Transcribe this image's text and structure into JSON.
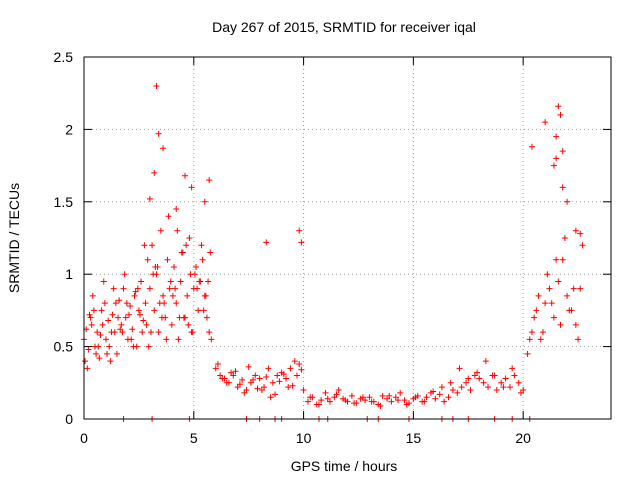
{
  "chart_data": {
    "type": "scatter",
    "title": "Day 267 of 2015, SRMTID for receiver iqal",
    "xlabel": "GPS time / hours",
    "ylabel": "SRMTID / TECUs",
    "xlim": [
      0,
      24
    ],
    "ylim": [
      0,
      2.5
    ],
    "grid": true,
    "x_ticks": [
      0,
      5,
      10,
      15,
      20
    ],
    "x_tick_labels": [
      "0",
      "5",
      "10",
      "15",
      "20"
    ],
    "y_ticks": [
      0,
      0.5,
      1,
      1.5,
      2,
      2.5
    ],
    "y_tick_labels": [
      "0",
      "0.5",
      "1",
      "1.5",
      "2",
      "2.5"
    ],
    "marker": "+",
    "color": "#ff0000",
    "series": [
      {
        "name": "SRMTID",
        "x": [
          0.0,
          0.1,
          0.2,
          0.3,
          0.4,
          0.5,
          0.6,
          0.7,
          0.8,
          0.9,
          1.0,
          1.1,
          1.2,
          1.3,
          1.4,
          1.5,
          1.6,
          1.7,
          1.8,
          1.9,
          2.0,
          2.1,
          2.2,
          2.3,
          2.4,
          2.5,
          2.6,
          2.7,
          2.8,
          2.9,
          3.0,
          3.1,
          3.2,
          3.3,
          3.4,
          3.5,
          3.6,
          3.7,
          3.8,
          3.9,
          4.0,
          4.1,
          4.2,
          4.3,
          4.4,
          4.5,
          4.6,
          4.7,
          4.8,
          4.9,
          5.0,
          5.1,
          5.2,
          5.3,
          5.4,
          5.5,
          5.6,
          5.7,
          5.8,
          6.0,
          6.2,
          6.4,
          6.6,
          6.8,
          7.0,
          7.2,
          7.4,
          7.6,
          7.8,
          8.0,
          8.2,
          8.4,
          8.6,
          8.8,
          9.0,
          9.2,
          9.4,
          9.6,
          9.8,
          10.0,
          10.2,
          10.4,
          10.6,
          10.8,
          11.0,
          11.2,
          11.4,
          11.6,
          11.8,
          12.0,
          12.2,
          12.4,
          12.6,
          12.8,
          13.0,
          13.2,
          13.4,
          13.6,
          13.8,
          14.0,
          14.2,
          14.4,
          14.6,
          14.8,
          15.0,
          15.2,
          15.4,
          15.6,
          15.8,
          16.0,
          16.2,
          16.4,
          16.6,
          16.8,
          17.0,
          17.2,
          17.4,
          17.6,
          17.8,
          18.0,
          18.2,
          18.4,
          18.6,
          18.8,
          19.0,
          19.2,
          19.4,
          19.6,
          19.8,
          20.0,
          20.2,
          20.4,
          20.6,
          20.8,
          21.0,
          21.2,
          21.4,
          21.6,
          21.8,
          22.0,
          22.2,
          22.4,
          22.6,
          0.05,
          0.35,
          0.65,
          0.95,
          1.25,
          1.55,
          1.85,
          2.15,
          2.45,
          2.75,
          3.05,
          3.35,
          3.65,
          3.95,
          4.25,
          4.55,
          4.85,
          5.15,
          5.45,
          5.75,
          0.15,
          0.45,
          0.75,
          1.05,
          1.35,
          1.65,
          1.95,
          2.25,
          2.55,
          2.85,
          3.15,
          3.45,
          3.75,
          4.05,
          4.35,
          4.65,
          4.95,
          5.25,
          5.55,
          0.25,
          0.55,
          0.85,
          1.15,
          1.45,
          1.75,
          2.05,
          2.35,
          2.65,
          2.95,
          3.25,
          3.55,
          3.85,
          4.15,
          4.45,
          4.75,
          5.05,
          5.35,
          5.65,
          6.1,
          6.5,
          6.9,
          7.3,
          7.7,
          8.1,
          8.5,
          8.9,
          9.3,
          9.7,
          6.3,
          6.7,
          7.1,
          7.5,
          7.9,
          8.3,
          8.7,
          9.1,
          9.5,
          9.9,
          10.3,
          10.7,
          11.1,
          11.5,
          11.9,
          12.3,
          12.7,
          13.1,
          13.5,
          13.9,
          14.3,
          14.7,
          15.1,
          15.5,
          15.9,
          16.3,
          16.7,
          17.1,
          17.5,
          17.9,
          18.3,
          18.7,
          19.1,
          19.5,
          19.9,
          20.3,
          20.7,
          21.1,
          21.5,
          21.9,
          22.3,
          22.7,
          20.5,
          20.9,
          21.3,
          21.7,
          22.1,
          22.5,
          21.0,
          21.5,
          21.8,
          22.0,
          22.4,
          3.3,
          3.4,
          3.2,
          3.6,
          3.0,
          5.7,
          4.2,
          4.6,
          4.9,
          5.5,
          8.3,
          9.8,
          9.9,
          21.6,
          21.7,
          21.5,
          21.8,
          21.4,
          22.6,
          20.4,
          1.8,
          3.1,
          4.8,
          7.4,
          8.0,
          8.7,
          9.0,
          10.7,
          11.1,
          12.9,
          13.4,
          14.8,
          16.3,
          16.8,
          17.5,
          18.7,
          19.5,
          20.3
        ],
        "y": [
          0.55,
          0.62,
          0.48,
          0.7,
          0.85,
          0.5,
          0.6,
          0.42,
          0.75,
          0.95,
          0.55,
          0.68,
          0.4,
          0.72,
          0.6,
          0.45,
          0.82,
          0.65,
          0.9,
          0.7,
          0.55,
          0.78,
          0.62,
          0.85,
          0.5,
          0.75,
          0.95,
          0.68,
          0.8,
          1.1,
          0.9,
          1.2,
          0.75,
          1.0,
          0.6,
          1.3,
          0.85,
          0.7,
          1.1,
          0.9,
          0.65,
          1.05,
          0.8,
          0.55,
          0.95,
          1.15,
          0.7,
          0.85,
          1.25,
          0.6,
          0.9,
          1.05,
          0.75,
          0.95,
          1.1,
          0.85,
          0.7,
          0.6,
          0.55,
          0.35,
          0.3,
          0.28,
          0.25,
          0.3,
          0.22,
          0.27,
          0.2,
          0.25,
          0.3,
          0.28,
          0.22,
          0.35,
          0.25,
          0.3,
          0.32,
          0.28,
          0.35,
          0.4,
          0.38,
          0.2,
          0.12,
          0.15,
          0.1,
          0.13,
          0.18,
          0.12,
          0.15,
          0.2,
          0.14,
          0.12,
          0.16,
          0.11,
          0.14,
          0.13,
          0.15,
          0.12,
          0.1,
          0.16,
          0.14,
          0.12,
          0.15,
          0.18,
          0.13,
          0.11,
          0.14,
          0.16,
          0.12,
          0.15,
          0.18,
          0.14,
          0.17,
          0.12,
          0.15,
          0.2,
          0.18,
          0.22,
          0.25,
          0.2,
          0.3,
          0.28,
          0.25,
          0.22,
          0.3,
          0.2,
          0.25,
          0.28,
          0.22,
          0.3,
          0.25,
          0.2,
          0.45,
          0.6,
          0.75,
          0.55,
          0.8,
          0.9,
          0.7,
          0.95,
          1.1,
          0.85,
          0.75,
          0.65,
          0.9,
          0.4,
          0.65,
          0.5,
          0.8,
          0.6,
          0.7,
          1.0,
          0.55,
          0.9,
          1.2,
          0.6,
          1.05,
          0.8,
          0.95,
          1.3,
          0.7,
          1.0,
          0.9,
          0.75,
          1.15,
          0.35,
          0.75,
          0.58,
          0.45,
          0.9,
          0.62,
          0.8,
          0.5,
          0.72,
          0.65,
          1.0,
          0.8,
          0.55,
          0.85,
          0.7,
          1.2,
          0.6,
          0.95,
          0.85,
          0.72,
          0.45,
          0.65,
          0.5,
          0.8,
          0.6,
          0.72,
          0.88,
          0.6,
          0.5,
          1.05,
          0.7,
          1.4,
          0.9,
          1.15,
          0.65,
          1.0,
          1.2,
          0.95,
          0.38,
          0.25,
          0.33,
          0.18,
          0.27,
          0.2,
          0.15,
          0.26,
          0.22,
          0.3,
          0.28,
          0.32,
          0.24,
          0.36,
          0.21,
          0.29,
          0.17,
          0.31,
          0.23,
          0.34,
          0.15,
          0.1,
          0.14,
          0.17,
          0.13,
          0.11,
          0.15,
          0.12,
          0.09,
          0.16,
          0.13,
          0.1,
          0.15,
          0.12,
          0.19,
          0.22,
          0.25,
          0.35,
          0.28,
          0.32,
          0.4,
          0.3,
          0.22,
          0.35,
          0.18,
          0.55,
          0.85,
          1.0,
          1.1,
          1.25,
          0.9,
          1.2,
          0.7,
          0.6,
          0.8,
          0.65,
          0.75,
          0.55,
          2.05,
          1.8,
          1.6,
          1.5,
          1.3,
          2.3,
          1.97,
          1.7,
          1.87,
          1.52,
          1.65,
          1.45,
          1.68,
          1.6,
          1.5,
          1.22,
          1.3,
          1.22,
          2.16,
          2.1,
          1.95,
          1.85,
          1.75,
          1.28,
          1.88,
          0.0,
          0.0,
          0.0,
          0.0,
          0.0,
          0.0,
          0.0,
          0.0,
          0.0,
          0.0,
          0.0,
          0.0,
          0.0,
          0.0,
          0.0,
          0.0,
          0.0,
          0.0
        ]
      }
    ]
  }
}
